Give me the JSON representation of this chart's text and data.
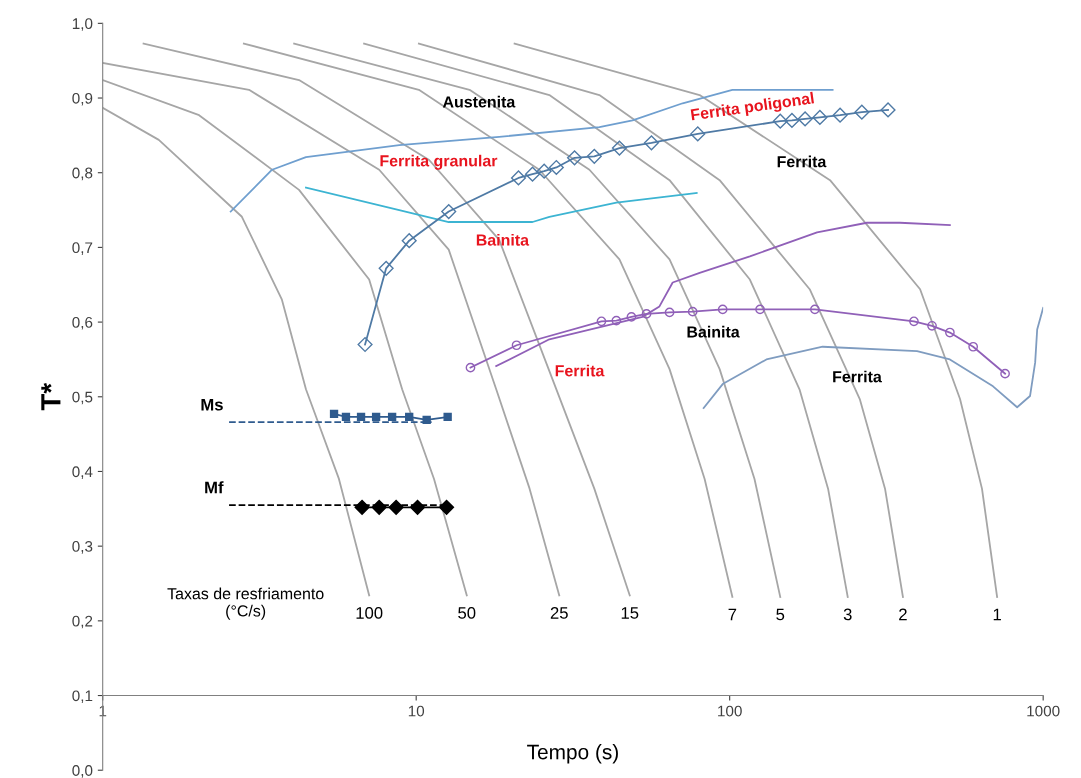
{
  "chart_data": {
    "type": "line",
    "xlabel": "Tempo (s)",
    "ylabel": "T*",
    "log": "x",
    "grid": false,
    "legend": false,
    "xlim": [
      1,
      1000
    ],
    "xticks": [
      1,
      10,
      100,
      1000
    ],
    "ylim": [
      0,
      1.0
    ],
    "yticks": [
      {
        "value": 0,
        "label": "0,0"
      },
      {
        "value": 0.1,
        "label": "0,1"
      },
      {
        "value": 0.2,
        "label": "0,2"
      },
      {
        "value": 0.3,
        "label": "0,3"
      },
      {
        "value": 0.4,
        "label": "0,4"
      },
      {
        "value": 0.5,
        "label": "0,5"
      },
      {
        "value": 0.6,
        "label": "0,6"
      },
      {
        "value": 0.7,
        "label": "0,7"
      },
      {
        "value": 0.8,
        "label": "0,8"
      },
      {
        "value": 0.9,
        "label": "0,9"
      },
      {
        "value": 1.0,
        "label": "1,0"
      }
    ],
    "series": [
      {
        "name": "100",
        "color": "#a6a6a6",
        "marker": "none",
        "line_style": "solid",
        "x": [
          1,
          1.51,
          2.78,
          3.73,
          4.45,
          5.67,
          7.08
        ],
        "values": [
          0.887,
          0.844,
          0.741,
          0.63,
          0.51,
          0.39,
          0.234
        ]
      },
      {
        "name": "50",
        "color": "#a6a6a6",
        "marker": "none",
        "line_style": "solid",
        "x": [
          1,
          2.03,
          4.23,
          7.08,
          9.02,
          11.4,
          14.5
        ],
        "values": [
          0.924,
          0.877,
          0.777,
          0.657,
          0.51,
          0.39,
          0.234
        ]
      },
      {
        "name": "25",
        "color": "#a6a6a6",
        "marker": "none",
        "line_style": "solid",
        "x": [
          1,
          2.93,
          7.62,
          12.7,
          18.0,
          23.0,
          28.6
        ],
        "values": [
          0.947,
          0.911,
          0.804,
          0.697,
          0.51,
          0.377,
          0.234
        ]
      },
      {
        "name": "15",
        "color": "#a6a6a6",
        "marker": "none",
        "line_style": "solid",
        "x": [
          1.35,
          4.23,
          11.0,
          18.4,
          28.0,
          37.0,
          48.0
        ],
        "values": [
          0.973,
          0.924,
          0.817,
          0.71,
          0.51,
          0.377,
          0.234
        ]
      },
      {
        "name": "7",
        "color": "#a6a6a6",
        "marker": "none",
        "line_style": "solid",
        "x": [
          2.82,
          10.2,
          24.7,
          44.5,
          64.3,
          83.2,
          102
        ],
        "values": [
          0.973,
          0.911,
          0.804,
          0.684,
          0.537,
          0.39,
          0.232
        ]
      },
      {
        "name": "5",
        "color": "#a6a6a6",
        "marker": "none",
        "line_style": "solid",
        "x": [
          4.08,
          14.8,
          35.7,
          64.3,
          92.9,
          120,
          145
        ],
        "values": [
          0.973,
          0.911,
          0.804,
          0.684,
          0.537,
          0.39,
          0.232
        ]
      },
      {
        "name": "3",
        "color": "#a6a6a6",
        "marker": "none",
        "line_style": "solid",
        "x": [
          6.82,
          26.6,
          64.3,
          116,
          167,
          206,
          238
        ],
        "values": [
          0.973,
          0.904,
          0.79,
          0.657,
          0.51,
          0.377,
          0.232
        ]
      },
      {
        "name": "2",
        "color": "#a6a6a6",
        "marker": "none",
        "line_style": "solid",
        "x": [
          10.2,
          38.4,
          92.9,
          180,
          260,
          313,
          357
        ],
        "values": [
          0.973,
          0.904,
          0.79,
          0.644,
          0.497,
          0.377,
          0.232
        ]
      },
      {
        "name": "1",
        "color": "#a6a6a6",
        "marker": "none",
        "line_style": "solid",
        "x": [
          20.6,
          80.2,
          209,
          405,
          543,
          638,
          713
        ],
        "values": [
          0.973,
          0.904,
          0.79,
          0.644,
          0.497,
          0.377,
          0.232
        ]
      },
      {
        "color": "#6f9fcf",
        "marker": "none",
        "line_style": "solid",
        "x": [
          2.56,
          3.47,
          4.45,
          8.83,
          18.4,
          38.4,
          49.0,
          70.8,
          102,
          213
        ],
        "values": [
          0.748,
          0.804,
          0.821,
          0.837,
          0.848,
          0.861,
          0.87,
          0.893,
          0.911,
          0.911
        ]
      },
      {
        "color": "#3cb4d2",
        "marker": "none",
        "line_style": "solid",
        "x": [
          4.45,
          8.83,
          12.7,
          23.5,
          26.6,
          43.5,
          78.5
        ],
        "values": [
          0.78,
          0.75,
          0.734,
          0.734,
          0.741,
          0.76,
          0.773
        ]
      },
      {
        "color": "#4f7aa5",
        "marker": "diamond",
        "line_style": "solid",
        "x": [
          6.87,
          8.02,
          9.5,
          12.7,
          21.2,
          23.5,
          25.6,
          28.0,
          32.0,
          37.0,
          44.5,
          56.3,
          79.1,
          145,
          158,
          174,
          194,
          225,
          264,
          320
        ],
        "values": [
          0.57,
          0.672,
          0.709,
          0.748,
          0.793,
          0.798,
          0.802,
          0.807,
          0.82,
          0.822,
          0.833,
          0.84,
          0.852,
          0.869,
          0.87,
          0.872,
          0.874,
          0.877,
          0.881,
          0.884
        ]
      },
      {
        "color": "#9060b8",
        "marker": "circle",
        "line_style": "solid",
        "x": [
          14.9,
          20.9,
          39.0,
          43.5,
          48.6,
          54.3,
          64.3,
          76.2,
          95.0,
          125,
          187,
          387,
          442,
          504,
          598,
          756
        ],
        "values": [
          0.539,
          0.569,
          0.601,
          0.602,
          0.607,
          0.611,
          0.613,
          0.614,
          0.617,
          0.617,
          0.617,
          0.601,
          0.595,
          0.586,
          0.567,
          0.531
        ]
      },
      {
        "color": "#9060b8",
        "marker": "none",
        "line_style": "solid",
        "x": [
          18.0,
          26.6,
          52.7,
          59.7,
          65.8,
          80.2,
          116,
          190,
          274,
          349,
          504
        ],
        "values": [
          0.541,
          0.577,
          0.607,
          0.621,
          0.653,
          0.666,
          0.688,
          0.72,
          0.733,
          0.733,
          0.73
        ]
      },
      {
        "color": "#7f9cc0",
        "marker": "none",
        "line_style": "solid",
        "x": [
          82.6,
          95.0,
          131,
          198,
          396,
          504,
          692,
          826,
          908,
          943,
          957,
          1000
        ],
        "values": [
          0.485,
          0.517,
          0.55,
          0.567,
          0.561,
          0.55,
          0.514,
          0.486,
          0.501,
          0.546,
          0.59,
          0.619
        ]
      },
      {
        "name": "Ms",
        "color": "#2f5b8e",
        "marker": "none",
        "line_style": "dashed",
        "x": [
          2.53,
          11.2
        ],
        "values": [
          0.466,
          0.466
        ]
      },
      {
        "color": "#2f5b8e",
        "marker": "square",
        "line_style": "solid",
        "x": [
          5.47,
          5.97,
          6.67,
          7.45,
          8.38,
          9.5,
          10.8,
          12.6
        ],
        "values": [
          0.477,
          0.473,
          0.473,
          0.473,
          0.473,
          0.473,
          0.469,
          0.473
        ]
      },
      {
        "name": "Mf",
        "color": "#000000",
        "marker": "none",
        "line_style": "dashed",
        "x": [
          2.53,
          12.5
        ],
        "values": [
          0.355,
          0.355
        ]
      },
      {
        "color": "#000000",
        "marker": "diamond",
        "line_style": "solid",
        "x": [
          6.72,
          7.62,
          8.63,
          10.1,
          12.5
        ],
        "values": [
          0.352,
          0.352,
          0.352,
          0.352,
          0.352
        ]
      }
    ],
    "annotations": [
      "Austenita",
      "Ferrita granular",
      "Bainita",
      "Ferrita poligonal",
      "Ferrita",
      "Bainita",
      "Ferrita",
      "Ferrita",
      "Taxas de resfriamento\n(°C/s)"
    ]
  }
}
